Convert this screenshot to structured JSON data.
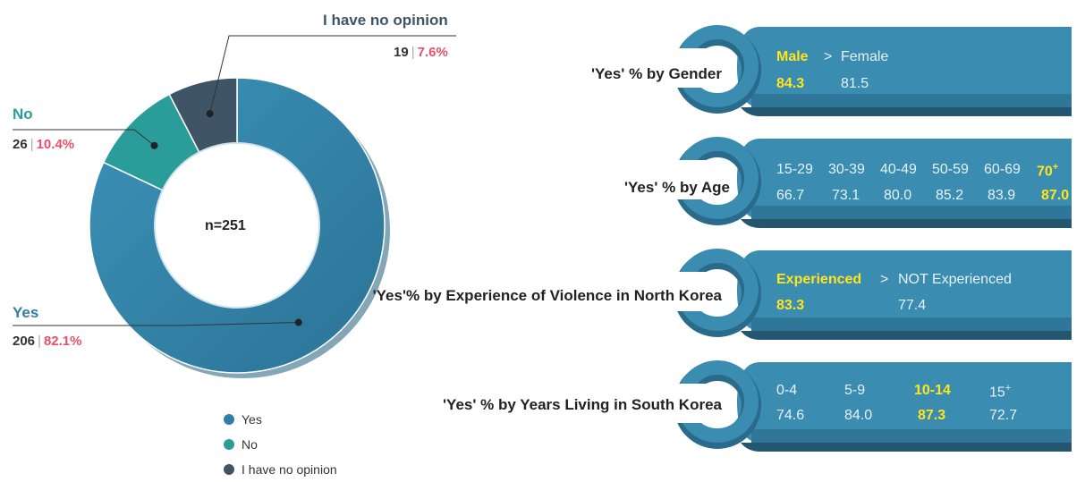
{
  "colors": {
    "yes": "#2e7fa3",
    "no": "#2a9d9b",
    "no_opinion": "#3f5566",
    "pct": "#e8506a",
    "highlight": "#ffe51f",
    "panel": "#3a8cb0",
    "panel_dark": "#285d77"
  },
  "chart_data": [
    {
      "type": "pie",
      "variant": "donut",
      "center_label": "n=251",
      "slices": [
        {
          "key": "yes",
          "label": "Yes",
          "count": "206",
          "percent_label": "82.1%",
          "value": 82.1
        },
        {
          "key": "no",
          "label": "No",
          "count": "26",
          "percent_label": "10.4%",
          "value": 10.4
        },
        {
          "key": "no_opinion",
          "label": "I have no opinion",
          "count": "19",
          "percent_label": "7.6%",
          "value": 7.6
        }
      ],
      "legend": {
        "placement": "bottom",
        "items": [
          {
            "key": "yes",
            "label": "Yes"
          },
          {
            "key": "no",
            "label": "No"
          },
          {
            "key": "no_opinion",
            "label": "I have no opinion"
          }
        ]
      }
    },
    {
      "type": "table",
      "title": "'Yes' % by Gender",
      "columns": [
        {
          "name": "Male",
          "value": "84.3",
          "highlight": true
        },
        {
          "name": "Female",
          "value": "81.5",
          "highlight": false
        }
      ],
      "relation": ">"
    },
    {
      "type": "table",
      "title": "'Yes' % by Age",
      "columns": [
        {
          "name": "15-29",
          "value": "66.7",
          "highlight": false
        },
        {
          "name": "30-39",
          "value": "73.1",
          "highlight": false
        },
        {
          "name": "40-49",
          "value": "80.0",
          "highlight": false
        },
        {
          "name": "50-59",
          "value": "85.2",
          "highlight": false
        },
        {
          "name": "60-69",
          "value": "83.9",
          "highlight": false
        },
        {
          "name": "70",
          "sup": "+",
          "value": "87.0",
          "highlight": true
        }
      ]
    },
    {
      "type": "table",
      "title": "'Yes'% by Experience of Violence in North Korea",
      "columns": [
        {
          "name": "Experienced",
          "value": "83.3",
          "highlight": true
        },
        {
          "name": "NOT Experienced",
          "value": "77.4",
          "highlight": false
        }
      ],
      "relation": ">"
    },
    {
      "type": "table",
      "title": "'Yes' % by Years Living in South Korea",
      "columns": [
        {
          "name": "0-4",
          "value": "74.6",
          "highlight": false
        },
        {
          "name": "5-9",
          "value": "84.0",
          "highlight": false
        },
        {
          "name": "10-14",
          "value": "87.3",
          "highlight": true
        },
        {
          "name": "15",
          "sup": "+",
          "value": "72.7",
          "highlight": false
        }
      ]
    }
  ]
}
